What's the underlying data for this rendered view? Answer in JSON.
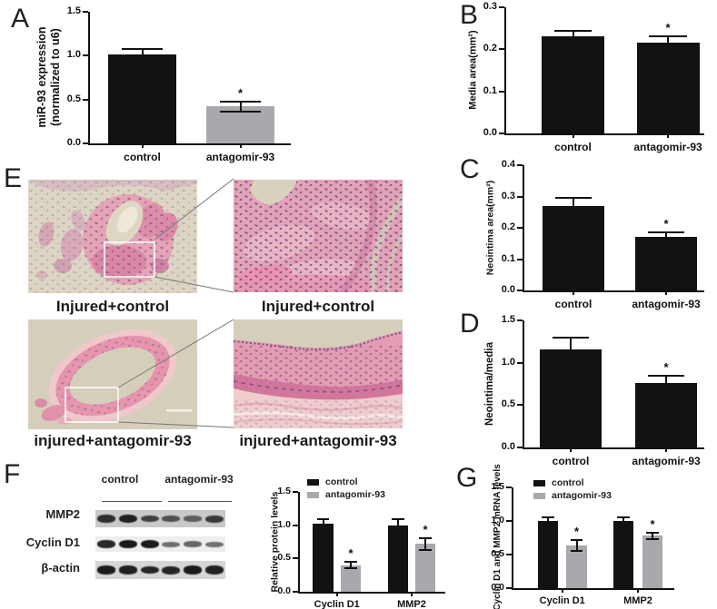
{
  "panel_labels": {
    "a": "A",
    "b": "B",
    "c": "C",
    "d": "D",
    "e": "E",
    "f": "F",
    "g": "G"
  },
  "colors": {
    "bar_black": "#121212",
    "bar_gray": "#a9a9ad",
    "axis": "#111111"
  },
  "sig_symbol": "*",
  "chart_data": [
    {
      "id": "A",
      "type": "bar",
      "ylabel_lines": [
        "miR-93 expression",
        "(normalized to u6)"
      ],
      "ylim": [
        0,
        1.5
      ],
      "yticks": [
        "0.0",
        "0.5",
        "1.0",
        "1.5"
      ],
      "categories": [
        "control",
        "antagomir-93"
      ],
      "values": [
        1.01,
        0.42
      ],
      "errors": [
        0.07,
        0.06
      ],
      "sig": [
        "",
        "*"
      ],
      "bar_colors": [
        "#121212",
        "#a9a9ad"
      ],
      "grid": false,
      "legend_position": "none"
    },
    {
      "id": "B",
      "type": "bar",
      "ylabel": "Media area(mm²)",
      "ylim": [
        0,
        0.3
      ],
      "yticks": [
        "0.0",
        "0.1",
        "0.2",
        "0.3"
      ],
      "categories": [
        "control",
        "antagomir-93"
      ],
      "values": [
        0.232,
        0.216
      ],
      "errors": [
        0.012,
        0.016
      ],
      "sig": [
        "",
        "*"
      ],
      "bar_colors": [
        "#121212",
        "#121212"
      ],
      "grid": false,
      "legend_position": "none"
    },
    {
      "id": "C",
      "type": "bar",
      "ylabel": "Neointima area(mm²)",
      "ylim": [
        0,
        0.4
      ],
      "yticks": [
        "0.0",
        "0.1",
        "0.2",
        "0.3",
        "0.4"
      ],
      "categories": [
        "control",
        "antagomir-93"
      ],
      "values": [
        0.27,
        0.17
      ],
      "errors": [
        0.027,
        0.016
      ],
      "sig": [
        "",
        "*"
      ],
      "bar_colors": [
        "#121212",
        "#121212"
      ],
      "grid": false,
      "legend_position": "none"
    },
    {
      "id": "D",
      "type": "bar",
      "ylabel": "Neointima/media",
      "ylim": [
        0,
        1.5
      ],
      "yticks": [
        "0.0",
        "0.5",
        "1.0",
        "1.5"
      ],
      "categories": [
        "control",
        "antagomir-93"
      ],
      "values": [
        1.16,
        0.76
      ],
      "errors": [
        0.14,
        0.09
      ],
      "sig": [
        "",
        "*"
      ],
      "bar_colors": [
        "#121212",
        "#121212"
      ],
      "grid": false,
      "legend_position": "none"
    },
    {
      "id": "F",
      "type": "bar",
      "ylabel": "Relative protein levels",
      "ylim": [
        0,
        1.5
      ],
      "yticks": [
        "0.0",
        "0.5",
        "1.0",
        "1.5"
      ],
      "categories": [
        "Cyclin D1",
        "MMP2"
      ],
      "series": [
        {
          "name": "control",
          "color": "#121212",
          "values": [
            1.02,
            1.0
          ],
          "errors": [
            0.07,
            0.09
          ],
          "sig": [
            "",
            ""
          ]
        },
        {
          "name": "antagomir-93",
          "color": "#a9a9ad",
          "values": [
            0.4,
            0.72
          ],
          "errors": [
            0.05,
            0.09
          ],
          "sig": [
            "*",
            "*"
          ]
        }
      ],
      "grid": false,
      "legend_position": "top-left"
    },
    {
      "id": "G",
      "type": "bar",
      "ylabel": "Cyclin D1 and MMP2 mRNA levels",
      "ylim": [
        0,
        1.5
      ],
      "yticks": [
        "0.0",
        "0.5",
        "1.0",
        "1.5"
      ],
      "categories": [
        "Cyclin D1",
        "MMP2"
      ],
      "series": [
        {
          "name": "control",
          "color": "#121212",
          "values": [
            1.0,
            1.0
          ],
          "errors": [
            0.05,
            0.06
          ],
          "sig": [
            "",
            ""
          ]
        },
        {
          "name": "antagomir-93",
          "color": "#a9a9ad",
          "values": [
            0.63,
            0.78
          ],
          "errors": [
            0.08,
            0.05
          ],
          "sig": [
            "*",
            "*"
          ]
        }
      ],
      "grid": false,
      "legend_position": "top-left"
    }
  ],
  "panel_e": {
    "images": [
      {
        "label": "Injured+control",
        "kind": "vessel-cross-section"
      },
      {
        "label": "Injured+control",
        "kind": "magnified-tissue"
      },
      {
        "label": "injured+antagomir-93",
        "kind": "vessel-cross-section"
      },
      {
        "label": "injured+antagomir-93",
        "kind": "magnified-tissue"
      }
    ]
  },
  "panel_f_blot": {
    "col_headers": [
      "control",
      "antagomir-93"
    ],
    "rows": [
      {
        "label": "MMP2",
        "intensities": [
          0.85,
          0.95,
          0.7,
          0.55,
          0.45,
          0.75
        ]
      },
      {
        "label": "Cyclin D1",
        "intensities": [
          0.9,
          1.0,
          1.0,
          0.42,
          0.48,
          0.42
        ]
      },
      {
        "label": "β-actin",
        "intensities": [
          1.0,
          0.95,
          0.9,
          0.92,
          1.0,
          0.95
        ]
      }
    ]
  }
}
